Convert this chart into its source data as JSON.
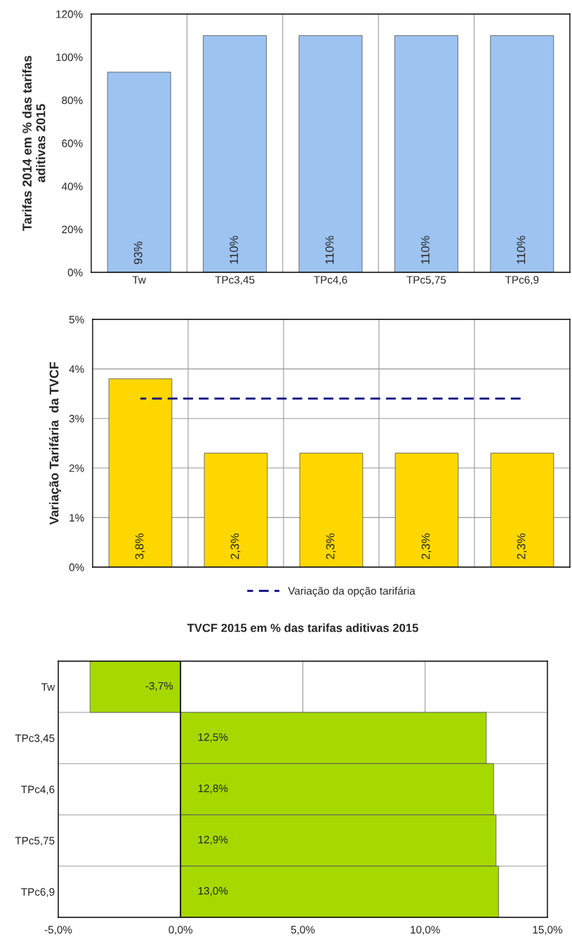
{
  "chart_data": [
    {
      "type": "bar",
      "ylabel": "Tarifas 2014 em % das tarifas\naditivas 2015",
      "categories": [
        "Tw",
        "TPc3,45",
        "TPc4,6",
        "TPc5,75",
        "TPc6,9"
      ],
      "series": [
        {
          "color": "#9dc3f0",
          "values": [
            93,
            110,
            110,
            110,
            110
          ],
          "value_labels": [
            "93%",
            "110%",
            "110%",
            "110%",
            "110%"
          ]
        }
      ],
      "ylim": [
        0,
        120
      ],
      "yticks": [
        {
          "value": 0,
          "label": "0%"
        },
        {
          "value": 20,
          "label": "20%"
        },
        {
          "value": 40,
          "label": "40%"
        },
        {
          "value": 60,
          "label": "60%"
        },
        {
          "value": 80,
          "label": "80%"
        },
        {
          "value": 100,
          "label": "100%"
        },
        {
          "value": 120,
          "label": "120%"
        }
      ],
      "grid": "x"
    },
    {
      "type": "bar",
      "ylabel": "Variação Tarifária  da TVCF",
      "categories": [
        null,
        null,
        null,
        null,
        null
      ],
      "series": [
        {
          "color": "#ffd700",
          "values": [
            3.8,
            2.3,
            2.3,
            2.3,
            2.3
          ],
          "value_labels": [
            "3,8%",
            "2,3%",
            "2,3%",
            "2,3%",
            "2,3%"
          ]
        },
        {
          "type": "line",
          "name": "Variação da opção tarifária",
          "color": "#000080",
          "line_style": "dashed",
          "values": [
            3.4,
            3.4,
            3.4,
            3.4,
            3.4
          ]
        }
      ],
      "ylim": [
        0,
        5
      ],
      "yticks": [
        {
          "value": 0,
          "label": "0%"
        },
        {
          "value": 1,
          "label": "1%"
        },
        {
          "value": 2,
          "label": "2%"
        },
        {
          "value": 3,
          "label": "3%"
        },
        {
          "value": 4,
          "label": "4%"
        },
        {
          "value": 5,
          "label": "5%"
        }
      ],
      "grid": true,
      "legend": "bottom"
    },
    {
      "type": "bar",
      "orientation": "horizontal",
      "title": "TVCF 2015 em % das tarifas aditivas 2015",
      "categories": [
        "Tw",
        "TPc3,45",
        "TPc4,6",
        "TPc5,75",
        "TPc6,9"
      ],
      "series": [
        {
          "color": "#a6d900",
          "values": [
            -3.7,
            12.5,
            12.8,
            12.9,
            13.0
          ],
          "value_labels": [
            "-3,7%",
            "12,5%",
            "12,8%",
            "12,9%",
            "13,0%"
          ]
        }
      ],
      "xlim": [
        -5,
        15
      ],
      "xticks": [
        {
          "value": -5,
          "label": "-5,0%"
        },
        {
          "value": 0,
          "label": "0,0%"
        },
        {
          "value": 5,
          "label": "5,0%"
        },
        {
          "value": 10,
          "label": "10,0%"
        },
        {
          "value": 15,
          "label": "15,0%"
        }
      ],
      "grid": true
    }
  ]
}
